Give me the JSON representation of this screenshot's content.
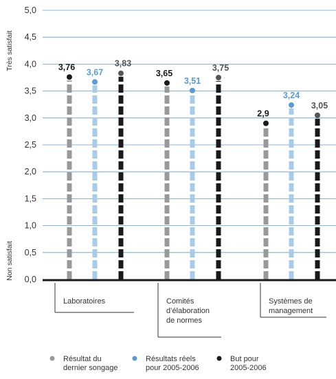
{
  "chart_data": {
    "type": "bar",
    "style": "dashed vertical stems topped with dot markers",
    "categories": [
      [
        "Laboratoires"
      ],
      [
        "Comités",
        "d’élaboration",
        "de normes"
      ],
      [
        "Systèmes de",
        "management"
      ]
    ],
    "series": [
      {
        "name": [
          "Résultat du",
          "dernier songage"
        ],
        "color": "#999999",
        "label_color": "#1a1a1a",
        "values": [
          3.76,
          3.65,
          2.9
        ],
        "labels": [
          "3,76",
          "3,65",
          "2,9"
        ]
      },
      {
        "name": [
          "Résultats réels",
          "pour 2005-2006"
        ],
        "color": "#a8cbe8",
        "label_color": "#5b9bd5",
        "values": [
          3.67,
          3.51,
          3.24
        ],
        "labels": [
          "3,67",
          "3,51",
          "3,24"
        ]
      },
      {
        "name": [
          "But pour",
          "2005-2006"
        ],
        "color": "#1a1a1a",
        "label_color": "#555555",
        "values": [
          3.83,
          3.75,
          3.05
        ],
        "labels": [
          "3,83",
          "3,75",
          "3,05"
        ]
      }
    ],
    "marker_colors": [
      "#1a1a1a",
      "#5b9bd5",
      "#555555"
    ],
    "ylim": [
      0,
      5
    ],
    "yticks": [
      "0,0",
      "0,5",
      "1,0",
      "1,5",
      "2,0",
      "2,5",
      "3,0",
      "3,5",
      "4,0",
      "4,5",
      "5,0"
    ],
    "ylabel_top": "Très satisfait",
    "ylabel_bottom": "Non satisfait",
    "grid_color": "#5b9bd5",
    "grid": true,
    "legend_position": "bottom"
  }
}
